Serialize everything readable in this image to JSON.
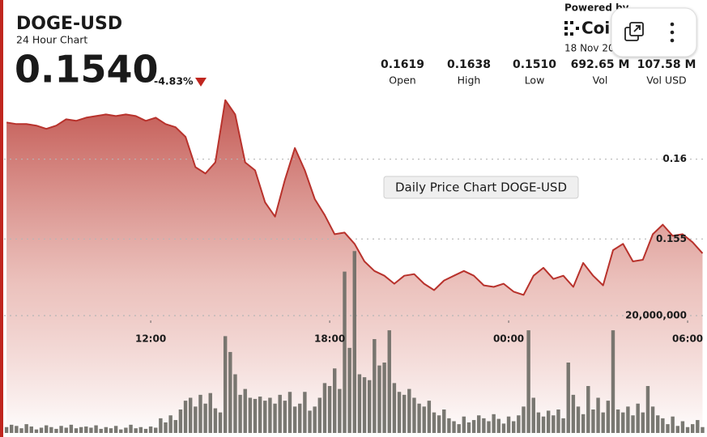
{
  "header": {
    "symbol": "DOGE-USD",
    "subtitle": "24 Hour Chart",
    "price": "0.1540",
    "change": "-4.83%",
    "powered_by": "Powered by",
    "brand": "Coin",
    "date": "18 Nov 20"
  },
  "stats": [
    {
      "value": "0.1619",
      "label": "Open"
    },
    {
      "value": "0.1638",
      "label": "High"
    },
    {
      "value": "0.1510",
      "label": "Low"
    },
    {
      "value": "692.65 M",
      "label": "Vol"
    },
    {
      "value": "107.58 M",
      "label": "Vol USD"
    }
  ],
  "chart_data": [
    {
      "type": "area",
      "title": "Daily Price Chart DOGE-USD",
      "color": "#b8322c",
      "x": [
        430,
        450,
        470,
        490,
        510,
        530,
        550,
        570,
        590,
        610,
        630,
        650,
        670,
        690,
        710,
        730,
        750,
        770,
        790,
        810,
        830,
        850,
        870,
        890,
        910,
        930,
        950,
        970,
        990,
        1010,
        1030,
        1050,
        1070,
        1090,
        1110,
        1130,
        1150,
        1170,
        1190,
        1210,
        1230,
        1250,
        1270,
        1290,
        1310,
        1330,
        1350,
        1370,
        1390,
        1410,
        1430,
        1450,
        1470,
        1490,
        1510,
        1530,
        1550,
        1570,
        1590,
        1610,
        1630,
        1650,
        1670,
        1690,
        1710,
        1730,
        1750,
        1770,
        1790,
        1810,
        1830
      ],
      "values": [
        0.1623,
        0.1622,
        0.1622,
        0.1621,
        0.1619,
        0.1621,
        0.1625,
        0.1624,
        0.1626,
        0.1627,
        0.1628,
        0.1627,
        0.1628,
        0.1627,
        0.1624,
        0.1626,
        0.1622,
        0.162,
        0.1614,
        0.1595,
        0.1591,
        0.1598,
        0.1637,
        0.1628,
        0.1598,
        0.1593,
        0.1573,
        0.1564,
        0.1587,
        0.1607,
        0.1593,
        0.1575,
        0.1565,
        0.1553,
        0.1554,
        0.1547,
        0.1536,
        0.153,
        0.1527,
        0.1522,
        0.1527,
        0.1528,
        0.1522,
        0.1518,
        0.1524,
        0.1527,
        0.153,
        0.1527,
        0.1521,
        0.152,
        0.1522,
        0.1517,
        0.1515,
        0.1527,
        0.1532,
        0.1525,
        0.1527,
        0.152,
        0.1535,
        0.1527,
        0.1521,
        0.1543,
        0.1547,
        0.1536,
        0.1537,
        0.1553,
        0.1559,
        0.1552,
        0.1553,
        0.1548,
        0.1541
      ],
      "xlim": [
        425,
        1839
      ],
      "xticks": [
        {
          "value": 720,
          "label": "12:00"
        },
        {
          "value": 1080,
          "label": "18:00"
        },
        {
          "value": 1440,
          "label": "00:00"
        },
        {
          "value": 1800,
          "label": "06:00"
        }
      ],
      "ylim": [
        0.1426,
        0.1649
      ],
      "yticks": [
        0.155,
        0.16
      ],
      "grid": true
    },
    {
      "type": "bar",
      "color": "#6e6d66",
      "x": [
        430,
        440,
        450,
        460,
        470,
        480,
        490,
        500,
        510,
        520,
        530,
        540,
        550,
        560,
        570,
        580,
        590,
        600,
        610,
        620,
        630,
        640,
        650,
        660,
        670,
        680,
        690,
        700,
        710,
        720,
        730,
        740,
        750,
        760,
        770,
        780,
        790,
        800,
        810,
        820,
        830,
        840,
        850,
        860,
        870,
        880,
        890,
        900,
        910,
        920,
        930,
        940,
        950,
        960,
        970,
        980,
        990,
        1000,
        1010,
        1020,
        1030,
        1040,
        1050,
        1060,
        1070,
        1080,
        1090,
        1100,
        1110,
        1120,
        1130,
        1140,
        1150,
        1160,
        1170,
        1180,
        1190,
        1200,
        1210,
        1220,
        1230,
        1240,
        1250,
        1260,
        1270,
        1280,
        1290,
        1300,
        1310,
        1320,
        1330,
        1340,
        1350,
        1360,
        1370,
        1380,
        1390,
        1400,
        1410,
        1420,
        1430,
        1440,
        1450,
        1460,
        1470,
        1480,
        1490,
        1500,
        1510,
        1520,
        1530,
        1540,
        1550,
        1560,
        1570,
        1580,
        1590,
        1600,
        1610,
        1620,
        1630,
        1640,
        1650,
        1660,
        1670,
        1680,
        1690,
        1700,
        1710,
        1720,
        1730,
        1740,
        1750,
        1760,
        1770,
        1780,
        1790,
        1800,
        1810,
        1820,
        1830
      ],
      "values": [
        1000000,
        1400000,
        1200000,
        800000,
        1500000,
        1100000,
        600000,
        900000,
        1300000,
        1000000,
        700000,
        1200000,
        900000,
        1400000,
        800000,
        1000000,
        1100000,
        900000,
        1300000,
        700000,
        1000000,
        800000,
        1200000,
        600000,
        900000,
        1400000,
        800000,
        1000000,
        700000,
        1100000,
        900000,
        2500000,
        1800000,
        3000000,
        2200000,
        4000000,
        5500000,
        6000000,
        4500000,
        6500000,
        5000000,
        6800000,
        4200000,
        3500000,
        16500000,
        13800000,
        10000000,
        6500000,
        7500000,
        6000000,
        5800000,
        6200000,
        5500000,
        6000000,
        5000000,
        6500000,
        5500000,
        7000000,
        4500000,
        5000000,
        7000000,
        3800000,
        4500000,
        6000000,
        8500000,
        8000000,
        11000000,
        7500000,
        27500000,
        14500000,
        31000000,
        10000000,
        9500000,
        9000000,
        16000000,
        11500000,
        12000000,
        17500000,
        8500000,
        7000000,
        6500000,
        7500000,
        6000000,
        5000000,
        4500000,
        5500000,
        3500000,
        3000000,
        4000000,
        2500000,
        2000000,
        1500000,
        2800000,
        1800000,
        2200000,
        3000000,
        2500000,
        2000000,
        3200000,
        2400000,
        1600000,
        2800000,
        2000000,
        3000000,
        4500000,
        17500000,
        6000000,
        3500000,
        2800000,
        3800000,
        3000000,
        4000000,
        2500000,
        12000000,
        6500000,
        4500000,
        3200000,
        8000000,
        4000000,
        6000000,
        3500000,
        5500000,
        17500000,
        4000000,
        3500000,
        4500000,
        3000000,
        5000000,
        3500000,
        8000000,
        4500000,
        3000000,
        2500000,
        1500000,
        2800000,
        1200000,
        2000000,
        1000000,
        1500000,
        2200000,
        1000000
      ],
      "xlim": [
        425,
        1839
      ],
      "ylim": [
        0,
        60000000
      ],
      "yticks": [
        {
          "value": 20000000,
          "label": "20,000,000"
        }
      ],
      "grid": true
    }
  ]
}
